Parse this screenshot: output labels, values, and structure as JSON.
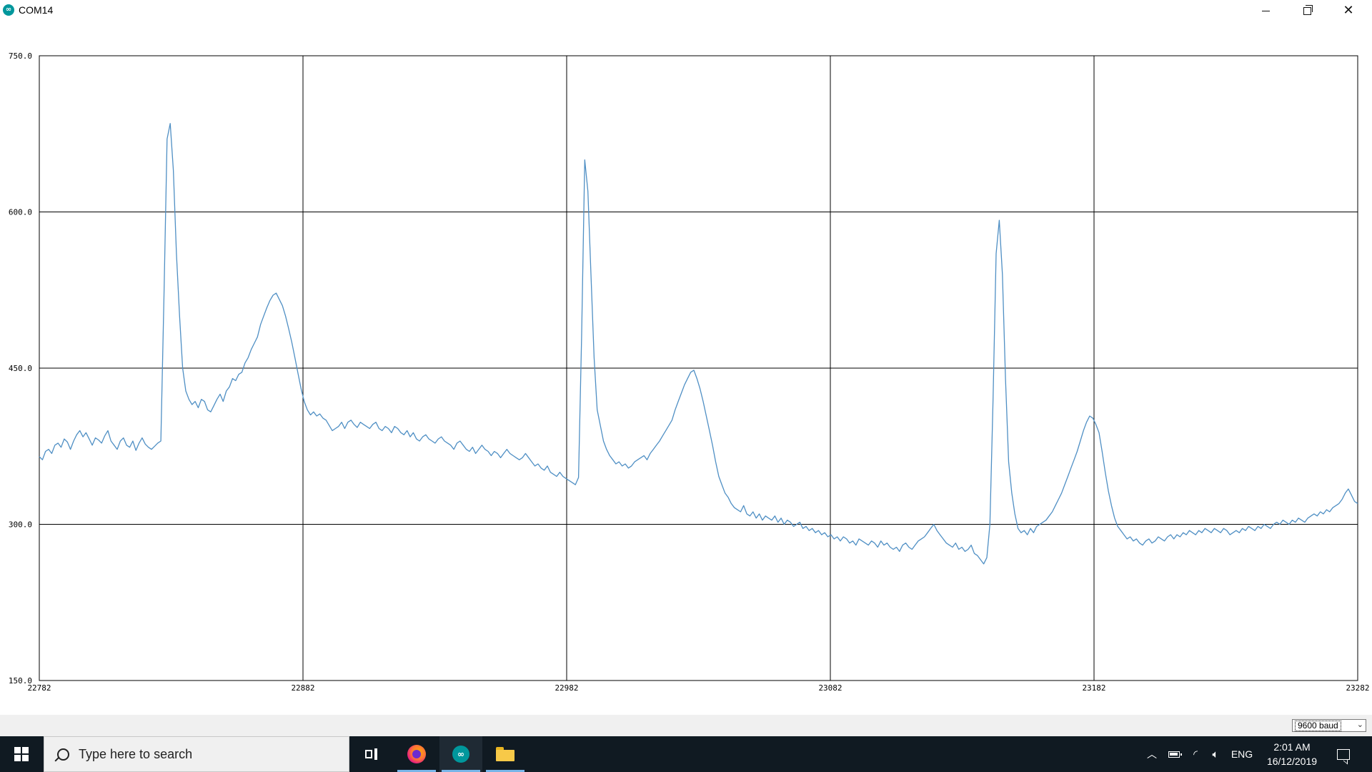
{
  "window": {
    "title": "COM14",
    "app_icon": "arduino-icon",
    "controls": [
      "minimize-icon",
      "maximize-icon",
      "close-icon"
    ]
  },
  "chart_data": {
    "type": "line",
    "xlim": [
      22782,
      23282
    ],
    "ylim": [
      150.0,
      750.0
    ],
    "x_ticks": [
      "22782",
      "22882",
      "22982",
      "23082",
      "23182",
      "23282"
    ],
    "y_ticks": [
      "750.0",
      "600.0",
      "450.0",
      "300.0",
      "150.0"
    ],
    "grid": true,
    "color": "#4f8fc4",
    "series": [
      {
        "x_start": 22782,
        "x_step": 1,
        "values": [
          365,
          362,
          370,
          372,
          368,
          376,
          378,
          374,
          382,
          379,
          372,
          380,
          386,
          390,
          384,
          388,
          382,
          376,
          383,
          381,
          378,
          385,
          390,
          380,
          376,
          372,
          380,
          383,
          376,
          374,
          380,
          371,
          378,
          383,
          377,
          374,
          372,
          375,
          378,
          380,
          520,
          670,
          685,
          640,
          560,
          500,
          450,
          428,
          420,
          415,
          418,
          412,
          420,
          418,
          410,
          408,
          414,
          420,
          425,
          418,
          428,
          432,
          440,
          438,
          444,
          446,
          455,
          460,
          468,
          474,
          480,
          492,
          500,
          508,
          515,
          520,
          522,
          516,
          510,
          500,
          488,
          475,
          460,
          445,
          430,
          418,
          410,
          405,
          408,
          404,
          406,
          402,
          400,
          395,
          390,
          392,
          394,
          398,
          392,
          398,
          400,
          396,
          393,
          398,
          396,
          394,
          392,
          396,
          398,
          392,
          390,
          394,
          392,
          388,
          394,
          392,
          388,
          386,
          390,
          384,
          388,
          382,
          380,
          384,
          386,
          382,
          380,
          378,
          382,
          384,
          380,
          378,
          376,
          372,
          378,
          380,
          376,
          372,
          370,
          374,
          368,
          372,
          376,
          372,
          370,
          366,
          370,
          368,
          364,
          368,
          372,
          368,
          366,
          364,
          362,
          364,
          368,
          364,
          360,
          356,
          358,
          354,
          352,
          356,
          350,
          348,
          346,
          350,
          346,
          344,
          342,
          340,
          338,
          345,
          480,
          650,
          620,
          540,
          460,
          410,
          395,
          380,
          372,
          366,
          362,
          358,
          360,
          356,
          358,
          354,
          356,
          360,
          362,
          364,
          366,
          362,
          368,
          372,
          376,
          380,
          385,
          390,
          395,
          400,
          410,
          418,
          426,
          434,
          440,
          446,
          448,
          440,
          430,
          418,
          404,
          390,
          376,
          360,
          346,
          338,
          330,
          326,
          320,
          316,
          314,
          312,
          318,
          310,
          308,
          312,
          306,
          310,
          304,
          308,
          306,
          304,
          308,
          302,
          306,
          300,
          304,
          302,
          298,
          300,
          302,
          296,
          298,
          294,
          296,
          292,
          294,
          290,
          292,
          288,
          290,
          286,
          288,
          284,
          288,
          286,
          282,
          284,
          280,
          286,
          284,
          282,
          280,
          284,
          282,
          278,
          284,
          280,
          282,
          278,
          276,
          278,
          274,
          280,
          282,
          278,
          276,
          280,
          284,
          286,
          288,
          292,
          296,
          300,
          294,
          290,
          286,
          282,
          280,
          278,
          282,
          276,
          278,
          274,
          276,
          280,
          272,
          270,
          266,
          262,
          268,
          300,
          420,
          560,
          592,
          540,
          440,
          360,
          330,
          310,
          296,
          292,
          294,
          290,
          296,
          292,
          298,
          300,
          302,
          304,
          308,
          312,
          318,
          324,
          330,
          338,
          346,
          354,
          362,
          370,
          380,
          390,
          398,
          404,
          402,
          396,
          388,
          370,
          350,
          332,
          318,
          306,
          298,
          294,
          290,
          286,
          288,
          284,
          286,
          282,
          280,
          284,
          286,
          282,
          284,
          288,
          286,
          284,
          288,
          290,
          286,
          290,
          288,
          292,
          290,
          294,
          292,
          290,
          294,
          292,
          296,
          294,
          292,
          296,
          294,
          292,
          296,
          294,
          290,
          292,
          294,
          292,
          296,
          294,
          298,
          296,
          294,
          298,
          296,
          300,
          298,
          296,
          300,
          302,
          300,
          304,
          302,
          300,
          304,
          302,
          306,
          304,
          302,
          306,
          308,
          310,
          308,
          312,
          310,
          314,
          312,
          316,
          318,
          320,
          324,
          330,
          334,
          328,
          322,
          320
        ]
      }
    ]
  },
  "bottom_bar": {
    "baud_value": "9600 baud"
  },
  "taskbar": {
    "search_placeholder": "Type here to search",
    "apps": [
      "task-view-icon",
      "firefox-icon",
      "arduino-icon",
      "file-explorer-icon"
    ],
    "tray": {
      "language": "ENG",
      "time": "2:01 AM",
      "date": "16/12/2019"
    }
  }
}
